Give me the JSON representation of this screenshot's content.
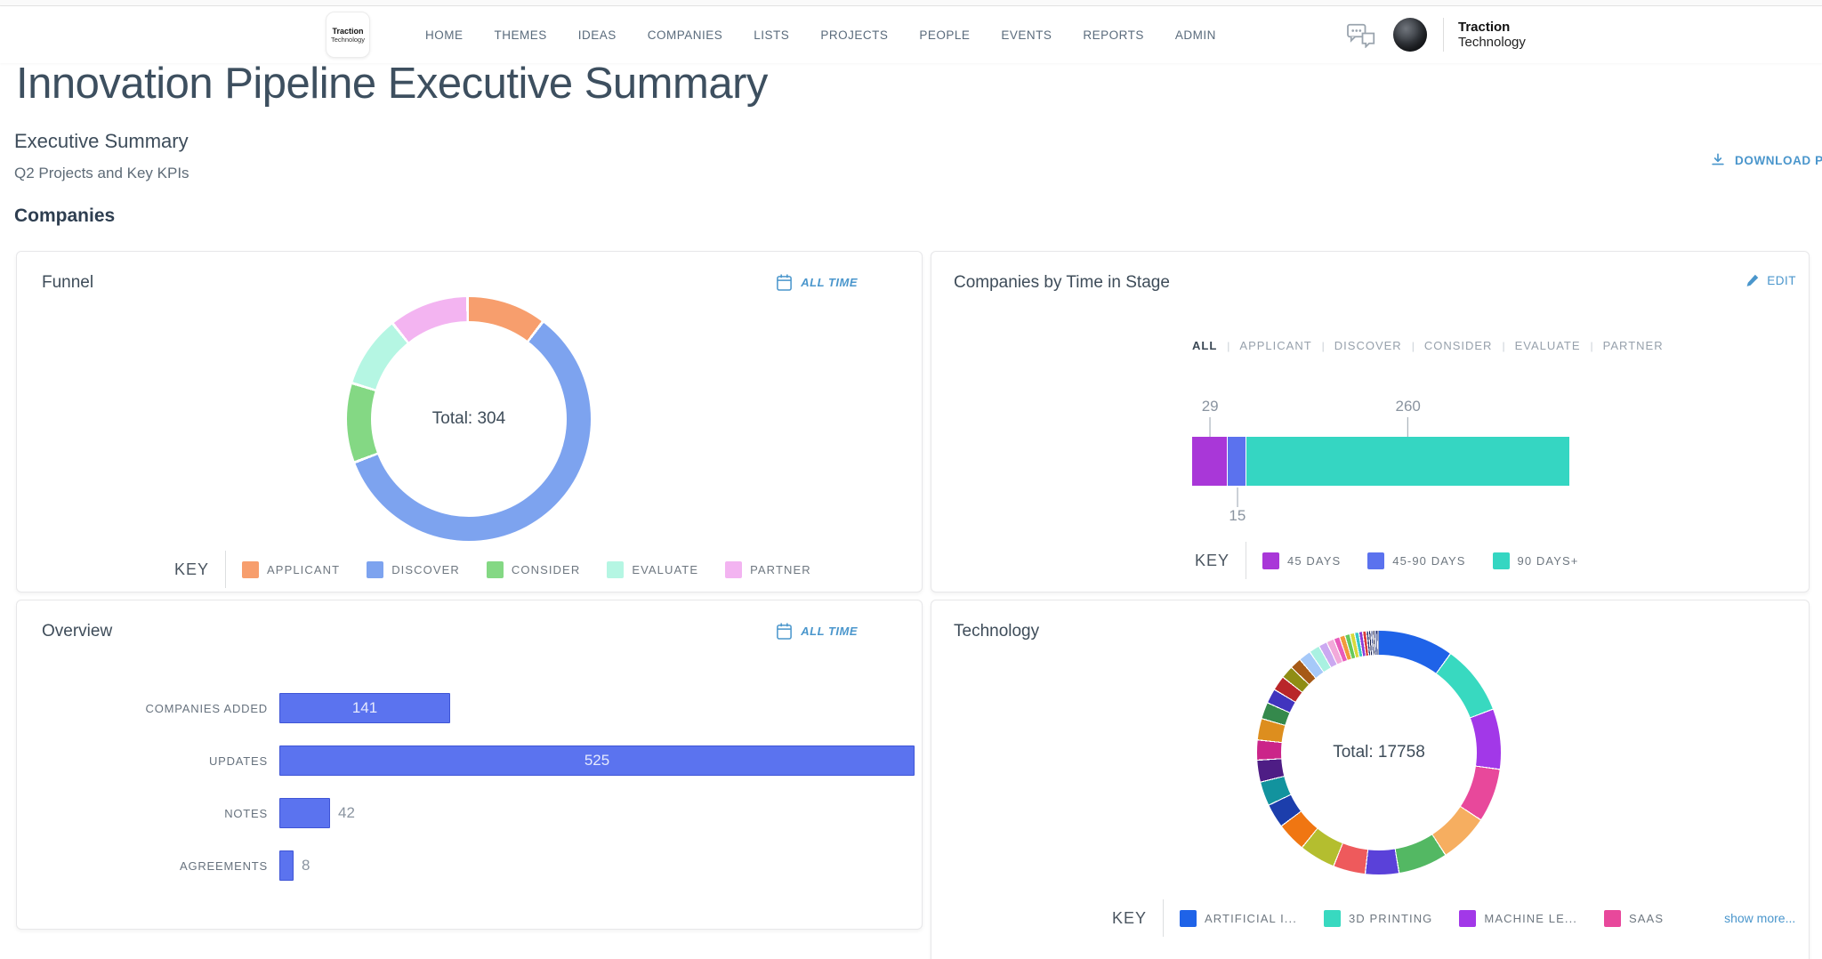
{
  "page": {
    "title": "Innovation Pipeline Executive Summary",
    "subtitle": "Executive Summary",
    "description": "Q2 Projects and Key KPIs",
    "download_label": "DOWNLOAD PDF",
    "section_title": "Companies"
  },
  "nav": {
    "logo_line1": "Traction",
    "logo_line2": "Technology",
    "items": [
      "HOME",
      "THEMES",
      "IDEAS",
      "COMPANIES",
      "LISTS",
      "PROJECTS",
      "PEOPLE",
      "EVENTS",
      "REPORTS",
      "ADMIN"
    ],
    "brand_line1": "Traction",
    "brand_line2": "Technology"
  },
  "panels": {
    "funnel": {
      "title": "Funnel",
      "time_filter": "ALL TIME",
      "key_label": "KEY"
    },
    "stage": {
      "title": "Companies by Time in Stage",
      "edit_label": "EDIT",
      "key_label": "KEY",
      "filters": [
        "ALL",
        "APPLICANT",
        "DISCOVER",
        "CONSIDER",
        "EVALUATE",
        "PARTNER"
      ],
      "active_filter": "ALL"
    },
    "overview": {
      "title": "Overview",
      "time_filter": "ALL TIME"
    },
    "technology": {
      "title": "Technology",
      "key_label": "KEY",
      "show_more_label": "show more..."
    }
  },
  "colors": {
    "link_blue": "#4A96CC",
    "nav_text": "#5A6B7C",
    "heading_text": "#3D4F5F",
    "overview_bar": "#5B73EF",
    "overview_bar_border": "#3F55D6"
  },
  "chart_data": [
    {
      "id": "funnel",
      "type": "pie",
      "variant": "donut",
      "title": "Funnel",
      "total": 304,
      "center_label": "Total: 304",
      "legend_position": "bottom",
      "series": [
        {
          "label": "APPLICANT",
          "value": 32,
          "color": "#F79E6D"
        },
        {
          "label": "DISCOVER",
          "value": 179,
          "color": "#7DA3EF"
        },
        {
          "label": "CONSIDER",
          "value": 32,
          "color": "#84D884"
        },
        {
          "label": "EVALUATE",
          "value": 29,
          "color": "#B5F6E3"
        },
        {
          "label": "PARTNER",
          "value": 32,
          "color": "#F3B4F1"
        }
      ]
    },
    {
      "id": "time_in_stage",
      "type": "bar",
      "stacked": true,
      "orientation": "horizontal",
      "title": "Companies by Time in Stage",
      "total": 304,
      "series": [
        {
          "label": "45 DAYS",
          "value": 29,
          "color": "#A937D8",
          "callout": "above"
        },
        {
          "label": "45-90 DAYS",
          "value": 15,
          "color": "#5B72EE",
          "callout": "below"
        },
        {
          "label": "90 DAYS+",
          "value": 260,
          "color": "#35D6C2",
          "callout": "above"
        }
      ]
    },
    {
      "id": "overview",
      "type": "bar",
      "orientation": "horizontal",
      "title": "Overview",
      "categories": [
        "COMPANIES ADDED",
        "UPDATES",
        "NOTES",
        "AGREEMENTS"
      ],
      "values": [
        141,
        525,
        42,
        8
      ],
      "xlim": [
        0,
        525
      ],
      "bar_color": "#5B73EF",
      "bar_border_color": "#3F55D6"
    },
    {
      "id": "technology",
      "type": "pie",
      "variant": "donut",
      "title": "Technology",
      "total": 17758,
      "center_label": "Total: 17758",
      "legend_position": "bottom",
      "series": [
        {
          "label": "ARTIFICIAL I...",
          "value": 1783,
          "color": "#1F63E8"
        },
        {
          "label": "3D PRINTING",
          "value": 1640,
          "color": "#38D9C0"
        },
        {
          "label": "MACHINE LE...",
          "value": 1420,
          "color": "#A238E8"
        },
        {
          "label": "SAAS",
          "value": 1260,
          "color": "#E8489B"
        },
        {
          "label": "",
          "value": 1160,
          "color": "#F6AE60"
        },
        {
          "label": "",
          "value": 1160,
          "color": "#53B863"
        },
        {
          "label": "",
          "value": 790,
          "color": "#5A41D9"
        },
        {
          "label": "",
          "value": 755,
          "color": "#EE5A5C"
        },
        {
          "label": "",
          "value": 850,
          "color": "#B4BE2F"
        },
        {
          "label": "",
          "value": 690,
          "color": "#F07612"
        },
        {
          "label": "",
          "value": 567,
          "color": "#1C3EAC"
        },
        {
          "label": "",
          "value": 567,
          "color": "#12939E"
        },
        {
          "label": "",
          "value": 514,
          "color": "#4E1D85"
        },
        {
          "label": "",
          "value": 470,
          "color": "#CB2589"
        },
        {
          "label": "",
          "value": 505,
          "color": "#DD8E1E"
        },
        {
          "label": "",
          "value": 390,
          "color": "#35894C"
        },
        {
          "label": "",
          "value": 346,
          "color": "#4134BE"
        },
        {
          "label": "",
          "value": 346,
          "color": "#B92629"
        },
        {
          "label": "",
          "value": 301,
          "color": "#8F8D14"
        },
        {
          "label": "",
          "value": 266,
          "color": "#A65A17"
        },
        {
          "label": "",
          "value": 290,
          "color": "#A6C9F9"
        },
        {
          "label": "",
          "value": 250,
          "color": "#A9F1E1"
        },
        {
          "label": "",
          "value": 200,
          "color": "#CBA9F1"
        },
        {
          "label": "",
          "value": 180,
          "color": "#F2A9DA"
        },
        {
          "label": "",
          "value": 140,
          "color": "#E95CBB"
        },
        {
          "label": "",
          "value": 130,
          "color": "#F29A3B"
        },
        {
          "label": "",
          "value": 120,
          "color": "#66C95B"
        },
        {
          "label": "",
          "value": 110,
          "color": "#D9D93B"
        },
        {
          "label": "",
          "value": 100,
          "color": "#3BC9C9"
        },
        {
          "label": "",
          "value": 90,
          "color": "#8A3BD9"
        },
        {
          "label": "",
          "value": 85,
          "color": "#D93B3B"
        },
        {
          "label": "",
          "value": 55,
          "color": "#27397B"
        },
        {
          "label": "",
          "value": 50,
          "color": "#151E4E"
        },
        {
          "label": "",
          "value": 45,
          "color": "#3A4A8E"
        },
        {
          "label": "",
          "value": 40,
          "color": "#101636"
        },
        {
          "label": "",
          "value": 35,
          "color": "#4A5AA0"
        },
        {
          "label": "",
          "value": 30,
          "color": "#1A2560"
        },
        {
          "label": "",
          "value": 28,
          "color": "#2E3E86"
        }
      ]
    }
  ]
}
